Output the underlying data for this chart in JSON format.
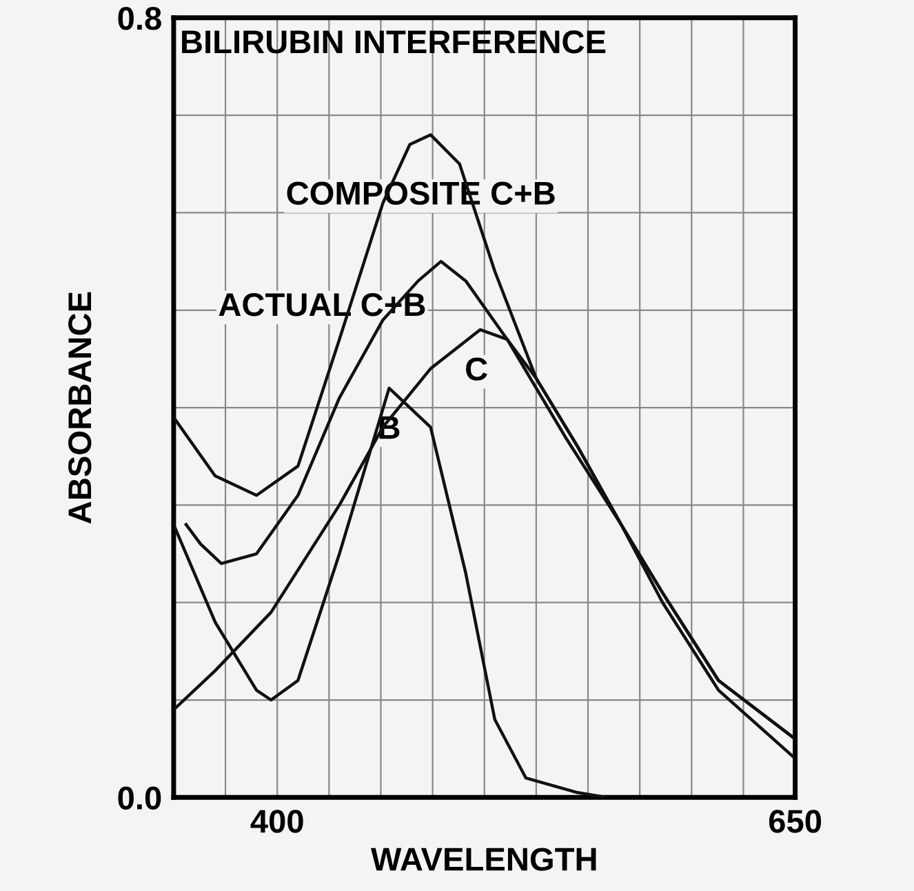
{
  "chart_data": {
    "type": "line",
    "title": "BILIRUBIN INTERFERENCE",
    "xlabel": "WAVELENGTH",
    "ylabel": "ABSORBANCE",
    "xlim": [
      350,
      650
    ],
    "ylim": [
      0,
      0.8
    ],
    "xticks": [
      {
        "value": 375,
        "label": null
      },
      400,
      {
        "value": 425,
        "label": null
      },
      {
        "value": 450,
        "label": null
      },
      {
        "value": 475,
        "label": null
      },
      {
        "value": 500,
        "label": null
      },
      {
        "value": 525,
        "label": null
      },
      {
        "value": 550,
        "label": null
      },
      {
        "value": 575,
        "label": null
      },
      {
        "value": 600,
        "label": null
      },
      {
        "value": 625,
        "label": null
      },
      650
    ],
    "yticks": [
      {
        "value": 0,
        "label": "0.0"
      },
      {
        "value": 0.1,
        "label": null
      },
      {
        "value": 0.2,
        "label": null
      },
      {
        "value": 0.3,
        "label": null
      },
      {
        "value": 0.4,
        "label": null
      },
      {
        "value": 0.5,
        "label": null
      },
      {
        "value": 0.6,
        "label": null
      },
      {
        "value": 0.7,
        "label": null
      },
      0.8
    ],
    "grid": true,
    "marker": "none",
    "line_style": "solid",
    "series": [
      {
        "color": "#111111",
        "x": [
          350,
          370,
          390,
          410,
          430,
          451,
          464,
          474,
          488,
          505,
          525,
          545,
          566,
          586,
          613,
          650
        ],
        "values": [
          0.39,
          0.33,
          0.31,
          0.34,
          0.47,
          0.61,
          0.67,
          0.68,
          0.65,
          0.54,
          0.43,
          0.36,
          0.28,
          0.21,
          0.12,
          0.06
        ]
      },
      {
        "color": "#111111",
        "x": [
          356,
          363,
          373,
          390,
          410,
          430,
          451,
          468,
          479,
          491,
          511,
          539,
          566,
          586,
          613,
          650
        ],
        "values": [
          0.28,
          0.26,
          0.24,
          0.25,
          0.31,
          0.41,
          0.49,
          0.53,
          0.55,
          0.53,
          0.47,
          0.37,
          0.28,
          0.2,
          0.11,
          0.04
        ]
      },
      {
        "color": "#111111",
        "x": [
          350,
          370,
          397,
          430,
          451,
          474,
          498,
          511,
          525,
          545,
          566,
          586,
          613,
          650
        ],
        "values": [
          0.09,
          0.13,
          0.19,
          0.3,
          0.38,
          0.44,
          0.48,
          0.47,
          0.43,
          0.36,
          0.28,
          0.21,
          0.12,
          0.06
        ]
      },
      {
        "color": "#111111",
        "x": [
          350,
          370,
          390,
          397,
          410,
          430,
          454,
          474,
          491,
          505,
          520,
          545,
          559
        ],
        "values": [
          0.28,
          0.18,
          0.11,
          0.1,
          0.12,
          0.25,
          0.42,
          0.38,
          0.23,
          0.08,
          0.02,
          0.005,
          0.0
        ]
      }
    ],
    "annotations": [
      {
        "text": "COMPOSITE C+B",
        "x": 474,
        "y": 0.68
      },
      {
        "text": "ACTUAL C+B",
        "x": 479,
        "y": 0.55
      },
      {
        "text": "B",
        "x": 454,
        "y": 0.42
      },
      {
        "text": "C",
        "x": 498,
        "y": 0.48
      }
    ]
  }
}
